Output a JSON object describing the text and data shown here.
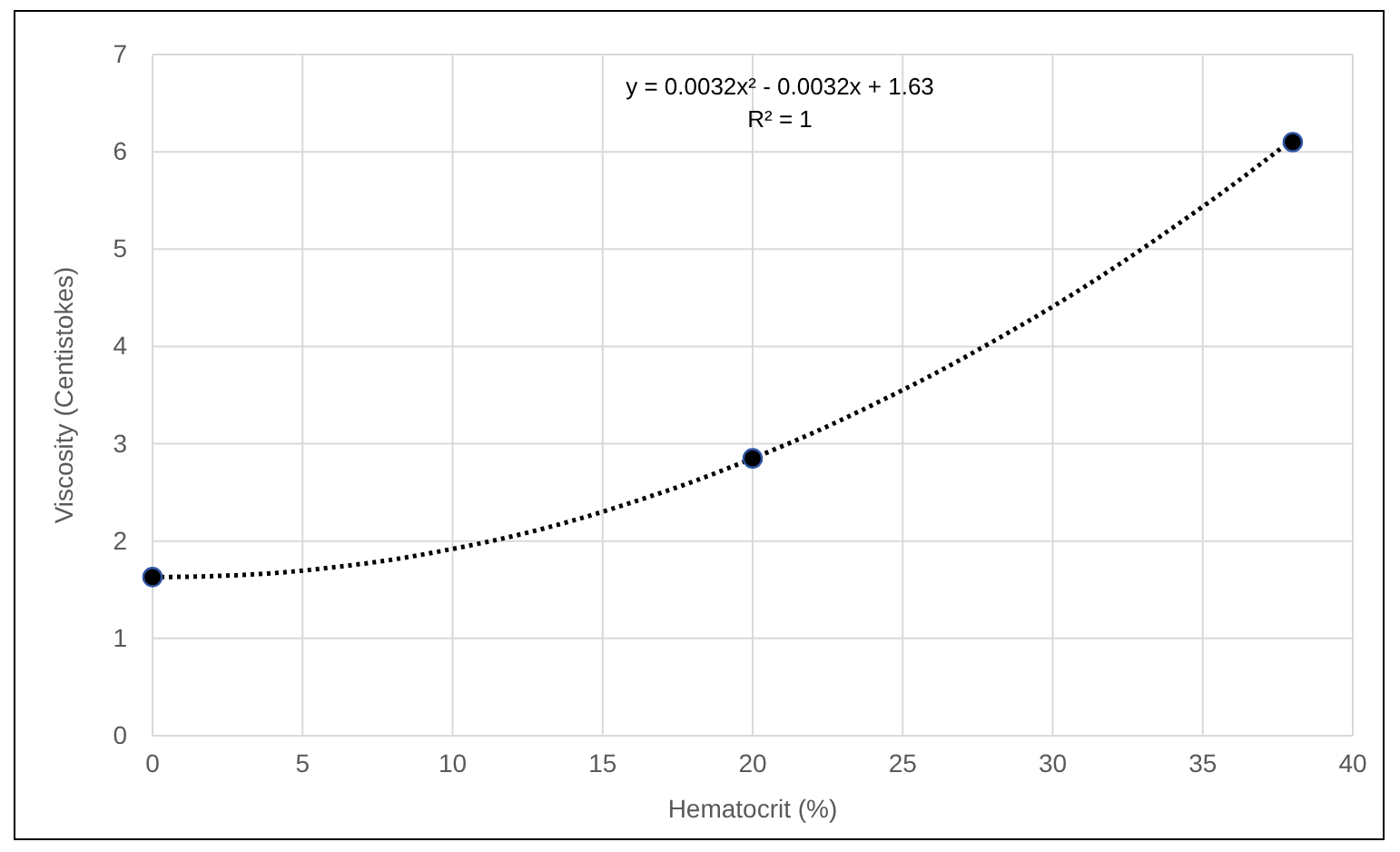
{
  "chart_data": {
    "type": "scatter",
    "xlabel": "Hematocrit (%)",
    "ylabel": "Viscosity (Centistokes)",
    "xlim": [
      0,
      40
    ],
    "xticks": [
      0,
      5,
      10,
      15,
      20,
      25,
      30,
      35,
      40
    ],
    "ylim": [
      0,
      7
    ],
    "yticks": [
      0,
      1,
      2,
      3,
      4,
      5,
      6,
      7
    ],
    "grid": true,
    "annotations": [
      "y = 0.0032x² - 0.0032x + 1.63",
      "R² = 1"
    ],
    "series": [
      {
        "type": "line",
        "line_style": "dotted",
        "color": "#000000",
        "x": [
          0,
          2,
          4,
          6,
          8,
          10,
          12,
          14,
          16,
          18,
          20,
          22,
          24,
          26,
          28,
          30,
          32,
          34,
          36,
          38
        ],
        "values": [
          1.63,
          1.64,
          1.67,
          1.73,
          1.81,
          1.92,
          2.05,
          2.21,
          2.4,
          2.61,
          2.85,
          3.11,
          3.4,
          3.71,
          4.05,
          4.41,
          4.8,
          5.22,
          5.66,
          6.13
        ]
      },
      {
        "marker": "circle",
        "color": "#000000",
        "x": [
          0,
          20,
          38
        ],
        "values": [
          1.63,
          2.85,
          6.1
        ]
      }
    ]
  }
}
